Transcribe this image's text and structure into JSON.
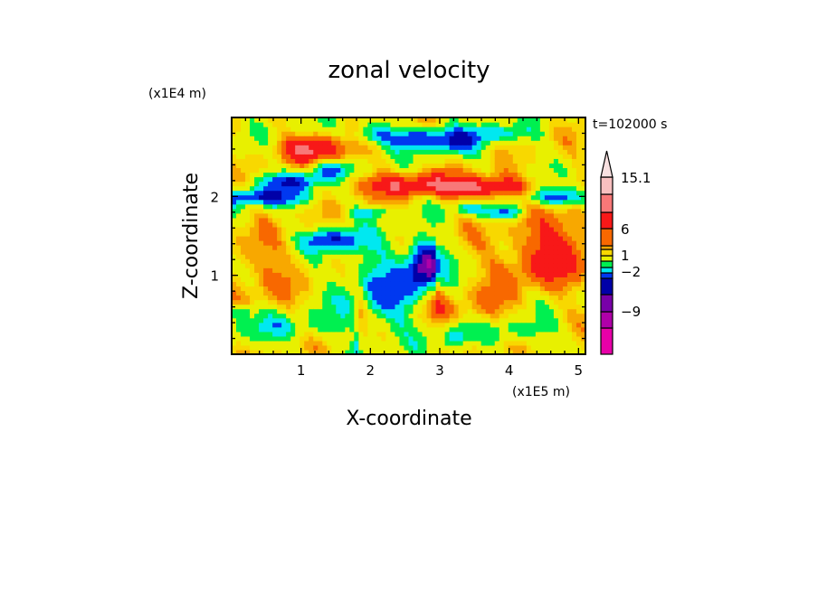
{
  "chart_data": {
    "type": "heatmap",
    "title": "zonal velocity",
    "time_label": "t=102000 s",
    "xlabel": "X-coordinate",
    "ylabel": "Z-coordinate",
    "x_unit": "(x1E5 m)",
    "y_unit": "(x1E4 m)",
    "xlim": [
      0,
      5.1
    ],
    "ylim": [
      0,
      3.0
    ],
    "x_ticks": [
      "1",
      "2",
      "3",
      "4",
      "5"
    ],
    "y_ticks": [
      "1",
      "2"
    ],
    "x_tick_values": [
      1,
      2,
      3,
      4,
      5
    ],
    "y_tick_values": [
      1,
      2
    ],
    "colorbar": {
      "labels": [
        "15.1",
        "6",
        "1",
        "-2",
        "-9"
      ],
      "colors_bottom_to_top": [
        "#e800a8",
        "#b000a8",
        "#7800a8",
        "#0000a8",
        "#0038f0",
        "#00e8f0",
        "#00f050",
        "#e8f000",
        "#f8d800",
        "#f8a800",
        "#f86800",
        "#f81818",
        "#f87878",
        "#f8c0c0"
      ],
      "extend_top_color": "#f8e0e0"
    }
  }
}
